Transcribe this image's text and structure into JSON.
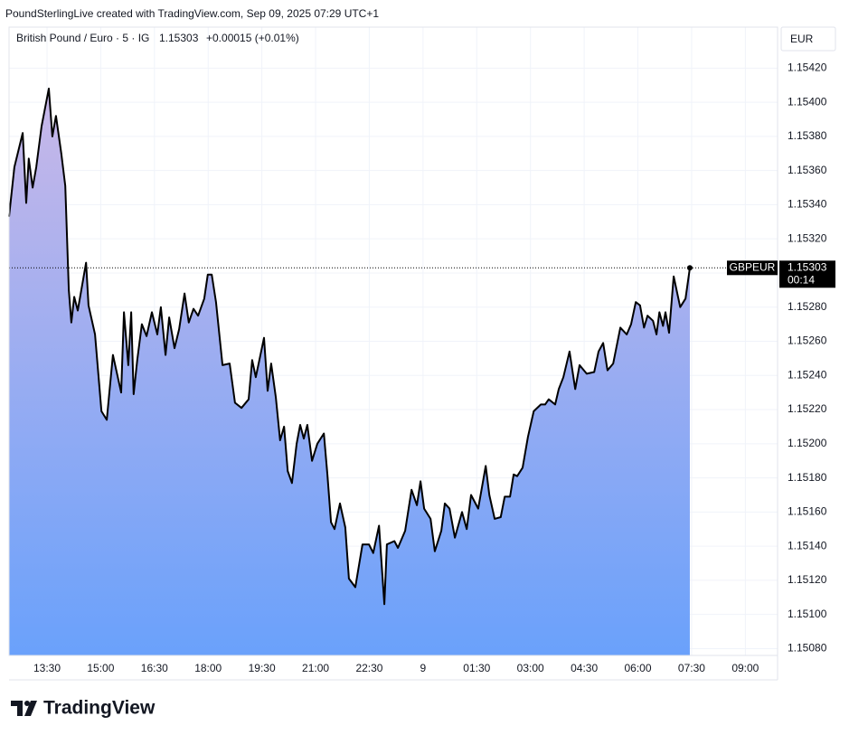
{
  "header": {
    "credit": "PoundSterlingLive created with TradingView.com, Sep 09, 2025 07:29 UTC+1"
  },
  "chart_data": {
    "type": "area",
    "title": "British Pound / Euro · 5 · IG",
    "last": 1.15303,
    "change_label": "+0.00015 (+0.01%)",
    "currency": "EUR",
    "symbol": "GBPEUR",
    "countdown": "00:14",
    "color": "#000000",
    "gradient": [
      "#c9b8e8",
      "#6aa1fb"
    ],
    "grid": true,
    "x": [
      12.44,
      12.59,
      12.82,
      12.92,
      12.99,
      13.1,
      13.2,
      13.35,
      13.55,
      13.65,
      13.75,
      13.9,
      14.01,
      14.11,
      14.18,
      14.26,
      14.36,
      14.59,
      14.66,
      14.84,
      15.02,
      15.17,
      15.34,
      15.57,
      15.65,
      15.77,
      15.85,
      15.92,
      16.02,
      16.15,
      16.28,
      16.43,
      16.58,
      16.68,
      16.81,
      16.91,
      17.06,
      17.19,
      17.34,
      17.46,
      17.59,
      17.72,
      17.89,
      17.99,
      18.1,
      18.22,
      18.4,
      18.6,
      18.75,
      18.93,
      19.13,
      19.23,
      19.33,
      19.56,
      19.66,
      19.76,
      19.89,
      20.01,
      20.12,
      20.22,
      20.34,
      20.47,
      20.57,
      20.67,
      20.77,
      20.9,
      21.05,
      21.23,
      21.33,
      21.43,
      21.53,
      21.68,
      21.83,
      21.93,
      22.11,
      22.31,
      22.49,
      22.61,
      22.77,
      22.92,
      22.99,
      23.2,
      23.3,
      23.5,
      23.68,
      23.83,
      23.93,
      24.03,
      24.21,
      24.33,
      24.51,
      24.61,
      24.74,
      24.89,
      25.09,
      25.22,
      25.34,
      25.54,
      25.75,
      25.85,
      26.0,
      26.17,
      26.28,
      26.43,
      26.53,
      26.63,
      26.78,
      26.93,
      27.09,
      27.29,
      27.41,
      27.51,
      27.69,
      27.79,
      27.92,
      28.09,
      28.25,
      28.37,
      28.57,
      28.78,
      28.9,
      29.03,
      29.15,
      29.31,
      29.51,
      29.69,
      29.81,
      29.94,
      30.06,
      30.17,
      30.27,
      30.42,
      30.52,
      30.6,
      30.7,
      30.77,
      30.87,
      31.0,
      31.18,
      31.33,
      31.45
    ],
    "values": [
      1.15333,
      1.15362,
      1.15382,
      1.15341,
      1.15367,
      1.1535,
      1.15362,
      1.15386,
      1.15408,
      1.1538,
      1.15392,
      1.1537,
      1.15351,
      1.1529,
      1.15271,
      1.15286,
      1.15278,
      1.15306,
      1.15281,
      1.15264,
      1.15219,
      1.15214,
      1.15252,
      1.1523,
      1.15277,
      1.15246,
      1.15277,
      1.15229,
      1.15249,
      1.1527,
      1.15263,
      1.15277,
      1.15264,
      1.1528,
      1.15252,
      1.15274,
      1.15256,
      1.15267,
      1.15288,
      1.15271,
      1.15279,
      1.15275,
      1.15285,
      1.15299,
      1.15299,
      1.15283,
      1.15246,
      1.15247,
      1.15224,
      1.15221,
      1.15226,
      1.15249,
      1.15239,
      1.15262,
      1.15231,
      1.15247,
      1.15227,
      1.15202,
      1.1521,
      1.15184,
      1.15177,
      1.152,
      1.15211,
      1.15203,
      1.15211,
      1.1519,
      1.152,
      1.15206,
      1.15182,
      1.15154,
      1.1515,
      1.15165,
      1.15151,
      1.15121,
      1.15116,
      1.15141,
      1.15141,
      1.15136,
      1.15152,
      1.15106,
      1.15141,
      1.15143,
      1.15139,
      1.15149,
      1.15173,
      1.15164,
      1.15178,
      1.15162,
      1.15156,
      1.15137,
      1.15149,
      1.15165,
      1.15162,
      1.15145,
      1.1516,
      1.1515,
      1.1517,
      1.15162,
      1.15187,
      1.1517,
      1.15156,
      1.15157,
      1.15169,
      1.15169,
      1.15182,
      1.15181,
      1.15186,
      1.15204,
      1.15219,
      1.15223,
      1.15223,
      1.15226,
      1.15223,
      1.15232,
      1.15239,
      1.15254,
      1.15232,
      1.15246,
      1.15241,
      1.15242,
      1.15254,
      1.15259,
      1.15243,
      1.15247,
      1.15268,
      1.15264,
      1.1527,
      1.15283,
      1.15281,
      1.15268,
      1.15275,
      1.15272,
      1.15264,
      1.15277,
      1.15269,
      1.15277,
      1.15265,
      1.15298,
      1.1528,
      1.15285,
      1.15303
    ],
    "xlim": [
      12.44,
      33.9
    ],
    "ylim": [
      1.15076,
      1.15444
    ],
    "xticks": [
      {
        "value": 13.5,
        "label": "13:30"
      },
      {
        "value": 15,
        "label": "15:00"
      },
      {
        "value": 16.5,
        "label": "16:30"
      },
      {
        "value": 18,
        "label": "18:00"
      },
      {
        "value": 19.5,
        "label": "19:30"
      },
      {
        "value": 21,
        "label": "21:00"
      },
      {
        "value": 22.5,
        "label": "22:30"
      },
      {
        "value": 24,
        "label": "9"
      },
      {
        "value": 25.5,
        "label": "01:30"
      },
      {
        "value": 27,
        "label": "03:00"
      },
      {
        "value": 28.5,
        "label": "04:30"
      },
      {
        "value": 30,
        "label": "06:00"
      },
      {
        "value": 31.5,
        "label": "07:30"
      },
      {
        "value": 33,
        "label": "09:00"
      }
    ],
    "yticks": [
      {
        "value": 1.1508,
        "label": "1.15080"
      },
      {
        "value": 1.151,
        "label": "1.15100"
      },
      {
        "value": 1.1512,
        "label": "1.15120"
      },
      {
        "value": 1.1514,
        "label": "1.15140"
      },
      {
        "value": 1.1516,
        "label": "1.15160"
      },
      {
        "value": 1.1518,
        "label": "1.15180"
      },
      {
        "value": 1.152,
        "label": "1.15200"
      },
      {
        "value": 1.1522,
        "label": "1.15220"
      },
      {
        "value": 1.1524,
        "label": "1.15240"
      },
      {
        "value": 1.1526,
        "label": "1.15260"
      },
      {
        "value": 1.1528,
        "label": "1.15280"
      },
      {
        "value": 1.153,
        "label": "1.15300"
      },
      {
        "value": 1.1532,
        "label": "1.15320"
      },
      {
        "value": 1.1534,
        "label": "1.15340"
      },
      {
        "value": 1.1536,
        "label": "1.15360"
      },
      {
        "value": 1.1538,
        "label": "1.15380"
      },
      {
        "value": 1.154,
        "label": "1.15400"
      },
      {
        "value": 1.1542,
        "label": "1.15420"
      }
    ]
  },
  "brand": "TradingView"
}
